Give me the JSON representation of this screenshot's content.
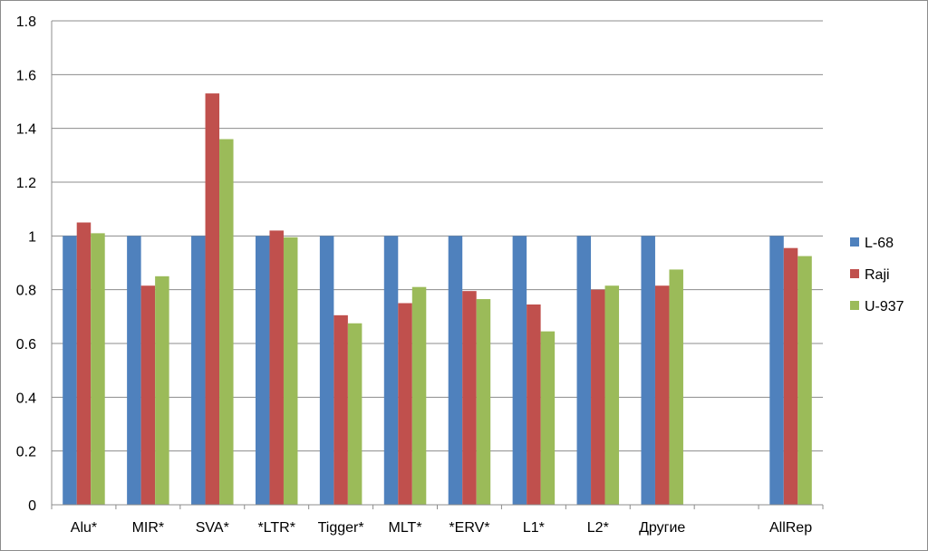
{
  "chart_data": {
    "type": "bar",
    "categories": [
      "Alu*",
      "MIR*",
      "SVA*",
      "*LTR*",
      "Tigger*",
      "MLT*",
      "*ERV*",
      "L1*",
      "L2*",
      "Другие",
      "",
      "AllRep"
    ],
    "series": [
      {
        "name": "L-68",
        "color": "#4f81bd",
        "values": [
          1,
          1,
          1,
          1,
          1,
          1,
          1,
          1,
          1,
          1,
          null,
          1
        ]
      },
      {
        "name": "Raji",
        "color": "#c0504d",
        "values": [
          1.05,
          0.815,
          1.53,
          1.02,
          0.705,
          0.75,
          0.795,
          0.745,
          0.8,
          0.815,
          null,
          0.955
        ]
      },
      {
        "name": "U-937",
        "color": "#9bbb59",
        "values": [
          1.01,
          0.85,
          1.36,
          0.995,
          0.675,
          0.81,
          0.765,
          0.645,
          0.815,
          0.875,
          null,
          0.925
        ]
      }
    ],
    "yticks": [
      "0",
      "0.2",
      "0.4",
      "0.6",
      "0.8",
      "1",
      "1.2",
      "1.4",
      "1.6",
      "1.8"
    ],
    "ylim": [
      0,
      1.8
    ],
    "grid": true,
    "legend_position": "right",
    "title": "",
    "xlabel": "",
    "ylabel": ""
  }
}
